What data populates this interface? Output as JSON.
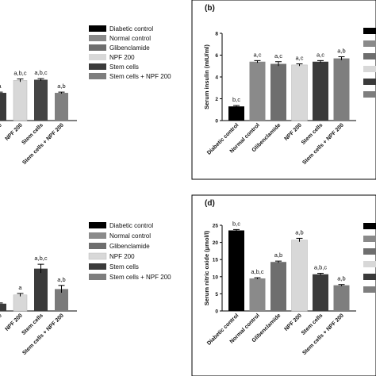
{
  "colors": {
    "legend_swatches": [
      "#000000",
      "#8a8a8a",
      "#6e6e6e",
      "#d8d8d8",
      "#3a3a3a",
      "#7e7e7e"
    ],
    "axis": "#000000",
    "error_bar": "#000000"
  },
  "legend": {
    "items": [
      "Diabetic control",
      "Normal control",
      "Glibenclamide",
      "NPF 200",
      "Stem cells",
      "Stem cells + NPF 200"
    ]
  },
  "chart_data": [
    {
      "panel_label": "",
      "type": "bar",
      "categories": [
        "lamide",
        "NPF 200",
        "Stem cells",
        "Stem cells + NPF 200"
      ],
      "values": [
        null,
        null,
        null,
        null
      ],
      "bar_colors": [
        "#3a3a3a",
        "#d8d8d8",
        "#444444",
        "#808080"
      ],
      "annotations": [
        "a",
        "a,b,c",
        "a,b,c",
        "a,b"
      ],
      "ylabel": "",
      "ylim": [
        0,
        1
      ],
      "yticks": [],
      "bar_fill_fraction": [
        0.38,
        0.55,
        0.56,
        0.38
      ],
      "error_fraction": [
        0.01,
        0.02,
        0.015,
        0.01
      ],
      "legend_position": "right"
    },
    {
      "panel_label": "(b)",
      "type": "bar",
      "categories": [
        "Diabetic control",
        "Normal control",
        "Glibenclamide",
        "NPF 200",
        "Stem cells",
        "Stem cells + NPF 200"
      ],
      "values": [
        1.3,
        5.4,
        5.2,
        5.1,
        5.4,
        5.7
      ],
      "errors": [
        0.08,
        0.1,
        0.2,
        0.1,
        0.1,
        0.15
      ],
      "bar_colors": [
        "#000000",
        "#8a8a8a",
        "#6e6e6e",
        "#d8d8d8",
        "#3a3a3a",
        "#7e7e7e"
      ],
      "annotations": [
        "b,c",
        "a,c",
        "a,c",
        "a,c",
        "a,c",
        "a,b"
      ],
      "ylabel": "Serum insulin (mIU/ml)",
      "ylim": [
        0,
        8
      ],
      "yticks": [
        "0",
        "2",
        "4",
        "6",
        "8"
      ],
      "legend_position": "right"
    },
    {
      "panel_label": "",
      "type": "bar",
      "categories": [
        "lamide",
        "NPF 200",
        "Stem cells",
        "Stem cells + NPF 200"
      ],
      "values": [
        null,
        null,
        null,
        null
      ],
      "bar_colors": [
        "#3a3a3a",
        "#d8d8d8",
        "#3a3a3a",
        "#7a7a7a"
      ],
      "annotations": [
        "",
        "a",
        "a,b,c",
        "a,b"
      ],
      "ylabel": "",
      "ylim": [
        0,
        1
      ],
      "yticks": [],
      "bar_fill_fraction": [
        0.1,
        0.22,
        0.58,
        0.3
      ],
      "error_fraction": [
        0.01,
        0.02,
        0.06,
        0.05
      ],
      "legend_position": "right"
    },
    {
      "panel_label": "(d)",
      "type": "bar",
      "categories": [
        "Diabetic control",
        "Normal control",
        "Glibenclamide",
        "NPF 200",
        "Stem cells",
        "Stem cells + NPF 200"
      ],
      "values": [
        23.5,
        9.5,
        14.3,
        20.7,
        10.7,
        7.5
      ],
      "errors": [
        0.25,
        0.2,
        0.25,
        0.5,
        0.3,
        0.2
      ],
      "bar_colors": [
        "#000000",
        "#8a8a8a",
        "#6e6e6e",
        "#d8d8d8",
        "#3a3a3a",
        "#7e7e7e"
      ],
      "annotations": [
        "b,c",
        "a,b,c",
        "a,b",
        "a,b",
        "a,b,c",
        "a,b"
      ],
      "ylabel": "Serum nitric oxide (μmol/l)",
      "ylim": [
        0,
        25
      ],
      "yticks": [
        "0",
        "5",
        "10",
        "15",
        "20",
        "25"
      ],
      "legend_position": "right"
    }
  ]
}
